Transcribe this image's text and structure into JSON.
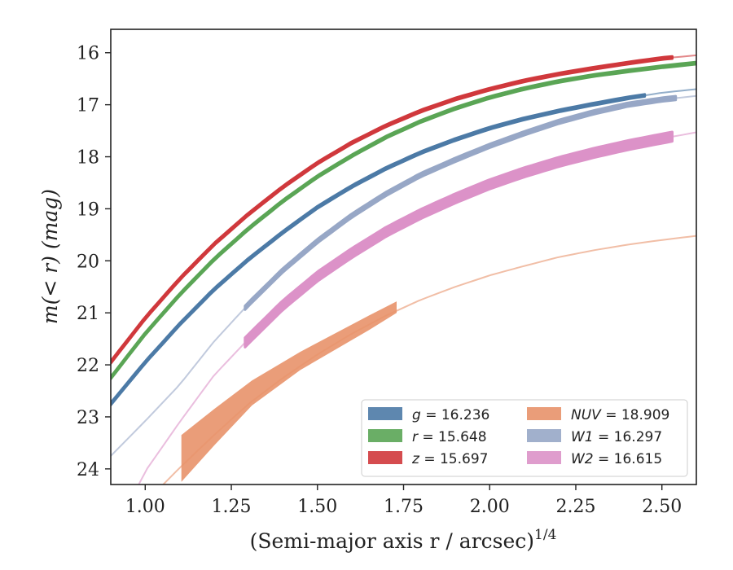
{
  "chart_data": {
    "type": "line",
    "title": "",
    "xlabel": "(Semi-major axis r / arcsec)",
    "xlabel_exponent": "1/4",
    "ylabel": "m(< r) (mag)",
    "xlim": [
      0.9,
      2.6
    ],
    "ylim": [
      24.3,
      15.55
    ],
    "y_inverted": true,
    "grid": false,
    "legend_placement": "lower-right",
    "x_ticks": [
      "1.00",
      "1.25",
      "1.50",
      "1.75",
      "2.00",
      "2.25",
      "2.50"
    ],
    "y_ticks": [
      "16",
      "17",
      "18",
      "19",
      "20",
      "21",
      "22",
      "23",
      "24"
    ],
    "x_tick_values": [
      1.0,
      1.25,
      1.5,
      1.75,
      2.0,
      2.25,
      2.5
    ],
    "y_tick_values": [
      16,
      17,
      18,
      19,
      20,
      21,
      22,
      23,
      24
    ],
    "series": [
      {
        "key": "g",
        "symbol": "g",
        "value": "16.236",
        "color": "#4c7aa6",
        "model_x": [
          0.9,
          1.0,
          1.1,
          1.2,
          1.3,
          1.4,
          1.5,
          1.6,
          1.7,
          1.8,
          1.9,
          2.0,
          2.1,
          2.2,
          2.3,
          2.4,
          2.5,
          2.6
        ],
        "model_y": [
          22.75,
          21.95,
          21.22,
          20.55,
          19.97,
          19.45,
          18.97,
          18.57,
          18.22,
          17.92,
          17.67,
          17.45,
          17.27,
          17.12,
          16.99,
          16.87,
          16.77,
          16.7
        ],
        "data_x_range": [
          0.9,
          2.45
        ],
        "band_width": 0.04
      },
      {
        "key": "r",
        "symbol": "r",
        "value": "15.648",
        "color": "#5aa555",
        "model_x": [
          0.9,
          1.0,
          1.1,
          1.2,
          1.3,
          1.4,
          1.5,
          1.6,
          1.7,
          1.8,
          1.9,
          2.0,
          2.1,
          2.2,
          2.3,
          2.4,
          2.5,
          2.6
        ],
        "model_y": [
          22.25,
          21.4,
          20.65,
          19.97,
          19.38,
          18.85,
          18.38,
          17.98,
          17.62,
          17.32,
          17.07,
          16.86,
          16.69,
          16.55,
          16.44,
          16.35,
          16.27,
          16.2
        ],
        "data_x_range": [
          0.9,
          2.6
        ],
        "band_width": 0.04
      },
      {
        "key": "z",
        "symbol": "z",
        "value": "15.697",
        "color": "#d0383c",
        "model_x": [
          0.9,
          1.0,
          1.1,
          1.2,
          1.3,
          1.4,
          1.5,
          1.6,
          1.7,
          1.8,
          1.9,
          2.0,
          2.1,
          2.2,
          2.3,
          2.4,
          2.5,
          2.6
        ],
        "model_y": [
          21.95,
          21.1,
          20.35,
          19.68,
          19.1,
          18.58,
          18.12,
          17.73,
          17.4,
          17.12,
          16.89,
          16.7,
          16.54,
          16.41,
          16.3,
          16.2,
          16.11,
          16.05
        ],
        "data_x_range": [
          0.9,
          2.53
        ],
        "band_width": 0.04
      },
      {
        "key": "NUV",
        "symbol": "NUV",
        "value": "18.909",
        "color": "#e8926a",
        "model_x": [
          0.9,
          1.0,
          1.1,
          1.2,
          1.3,
          1.4,
          1.5,
          1.6,
          1.7,
          1.8,
          1.9,
          2.0,
          2.1,
          2.2,
          2.3,
          2.4,
          2.5,
          2.6
        ],
        "model_y": [
          25.1,
          24.65,
          23.98,
          23.35,
          22.75,
          22.25,
          21.8,
          21.4,
          21.05,
          20.75,
          20.5,
          20.28,
          20.1,
          19.93,
          19.8,
          19.69,
          19.6,
          19.52
        ],
        "band_x": [
          1.105,
          1.2,
          1.31,
          1.45,
          1.65,
          1.73
        ],
        "band_upper": [
          23.35,
          22.85,
          22.3,
          21.75,
          21.05,
          20.78
        ],
        "band_lower": [
          24.25,
          23.55,
          22.78,
          22.1,
          21.33,
          21.0
        ]
      },
      {
        "key": "W1",
        "symbol": "W1",
        "value": "16.297",
        "color": "#97a7c6",
        "model_x": [
          0.9,
          1.0,
          1.1,
          1.2,
          1.3,
          1.4,
          1.5,
          1.6,
          1.7,
          1.8,
          1.9,
          2.0,
          2.1,
          2.2,
          2.3,
          2.4,
          2.5,
          2.6
        ],
        "model_y": [
          23.75,
          23.08,
          22.38,
          21.55,
          20.83,
          20.18,
          19.62,
          19.13,
          18.71,
          18.35,
          18.06,
          17.79,
          17.55,
          17.33,
          17.15,
          17.0,
          16.9,
          16.83
        ],
        "data_x_range": [
          1.29,
          2.54
        ],
        "band_width": 0.07
      },
      {
        "key": "W2",
        "symbol": "W2",
        "value": "16.615",
        "color": "#dc92c8",
        "model_x": [
          0.9,
          1.0,
          1.1,
          1.2,
          1.3,
          1.4,
          1.5,
          1.6,
          1.7,
          1.8,
          1.9,
          2.0,
          2.1,
          2.2,
          2.3,
          2.4,
          2.5,
          2.6
        ],
        "model_y": [
          25.4,
          24.05,
          23.1,
          22.2,
          21.5,
          20.85,
          20.3,
          19.85,
          19.44,
          19.1,
          18.8,
          18.53,
          18.3,
          18.1,
          17.93,
          17.78,
          17.65,
          17.53
        ],
        "data_x_range": [
          1.29,
          2.53
        ],
        "band_width": 0.18
      }
    ]
  }
}
